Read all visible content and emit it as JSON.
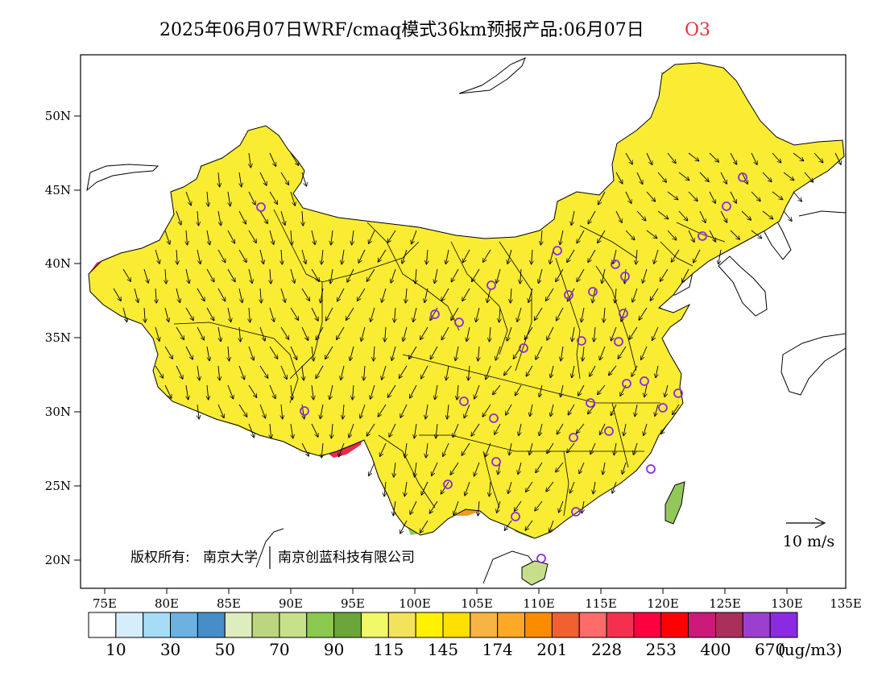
{
  "title": {
    "main": "2025年06月07日WRF/cmaq模式36km预报产品:06月07日",
    "species": "O3",
    "species_color": "#e8333a"
  },
  "copyright": {
    "label": "版权所有:",
    "org1": "南京大学",
    "org2": "南京创蓝科技有限公司"
  },
  "wind_scale": {
    "label": "10 m/s"
  },
  "axes": {
    "lat_labels": [
      "50N",
      "45N",
      "40N",
      "35N",
      "30N",
      "25N",
      "20N"
    ],
    "lon_labels": [
      "75E",
      "80E",
      "85E",
      "90E",
      "95E",
      "100E",
      "105E",
      "110E",
      "115E",
      "120E",
      "125E",
      "130E",
      "135E"
    ]
  },
  "colorbar": {
    "colors": [
      "#ffffff",
      "#d6eefc",
      "#a6dcf6",
      "#6cb1e2",
      "#478ec8",
      "#deedbd",
      "#bbd67e",
      "#c8e08a",
      "#8bc84f",
      "#6aa63a",
      "#f1f86a",
      "#f3e35b",
      "#fff200",
      "#ffe000",
      "#f7b443",
      "#fca927",
      "#fb8c00",
      "#f06030",
      "#ff6a6a",
      "#f5304e",
      "#ff0040",
      "#ff0000",
      "#cc1a7a",
      "#a8305a",
      "#9b3fcf",
      "#8a2be2"
    ],
    "labels": [
      "10",
      "30",
      "50",
      "70",
      "90",
      "115",
      "145",
      "174",
      "201",
      "228",
      "253",
      "400",
      "670"
    ],
    "unit": "(ug/m3)"
  },
  "map": {
    "fill_colors": {
      "base": "#f9ec33",
      "light_yellow": "#f6f37a",
      "orange_light": "#f7b443",
      "orange": "#f59b21",
      "orange_dark": "#ef7a14",
      "red_orange": "#f0603a",
      "pink": "#f26873",
      "red": "#ea2a4e",
      "green_light": "#c7df8b",
      "green": "#93c75a",
      "green_dark": "#6aa63a"
    },
    "station_color": "#8a2be2"
  }
}
